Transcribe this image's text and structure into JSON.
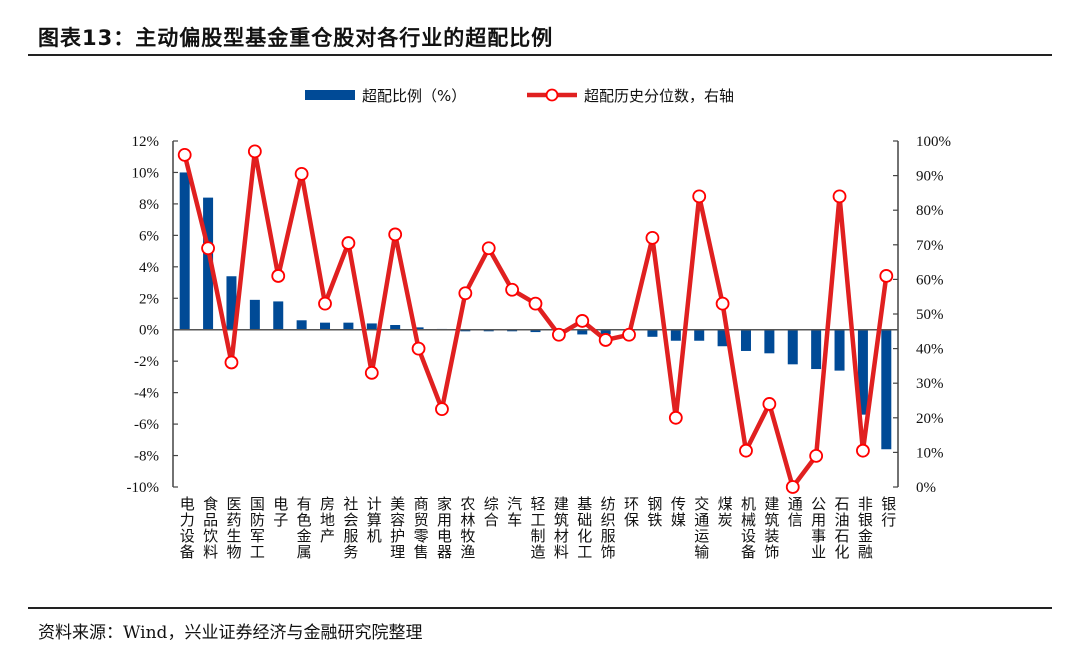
{
  "title": "图表13：主动偏股型基金重仓股对各行业的超配比例",
  "source": "资料来源：Wind，兴业证券经济与金融研究院整理",
  "chart_data": {
    "type": "bar+line",
    "categories": [
      "电力设备",
      "食品饮料",
      "医药生物",
      "国防军工",
      "电子",
      "有色金属",
      "房地产",
      "社会服务",
      "计算机",
      "美容护理",
      "商贸零售",
      "家用电器",
      "农林牧渔",
      "综合",
      "汽车",
      "轻工制造",
      "建筑材料",
      "基础化工",
      "纺织服饰",
      "环保",
      "钢铁",
      "传媒",
      "交通运输",
      "煤炭",
      "机械设备",
      "建筑装饰",
      "通信",
      "公用事业",
      "石油石化",
      "非银金融",
      "银行"
    ],
    "series": [
      {
        "name": "超配比例（%）",
        "type": "bar",
        "axis": "left",
        "color": "#004a96",
        "values": [
          10.0,
          8.4,
          3.4,
          1.9,
          1.8,
          0.6,
          0.45,
          0.45,
          0.4,
          0.3,
          0.15,
          0.05,
          -0.1,
          -0.1,
          -0.1,
          -0.15,
          -0.05,
          -0.3,
          -0.3,
          -0.1,
          -0.45,
          -0.7,
          -0.7,
          -1.05,
          -1.35,
          -1.5,
          -2.2,
          -2.5,
          -2.6,
          -5.4,
          -7.6
        ]
      },
      {
        "name": "超配历史分位数，右轴",
        "type": "line",
        "axis": "right",
        "color": "#e02020",
        "values": [
          96,
          69,
          36,
          97,
          61,
          90.5,
          53,
          70.5,
          33,
          73,
          40,
          22.5,
          56,
          69,
          57,
          53,
          44,
          48,
          42.5,
          44,
          72,
          20,
          84,
          53,
          10.5,
          24,
          0,
          9,
          84,
          10.5,
          61
        ]
      }
    ],
    "left_axis": {
      "ylim": [
        -10,
        12
      ],
      "ticks": [
        "12%",
        "10%",
        "8%",
        "6%",
        "4%",
        "2%",
        "0%",
        "-2%",
        "-4%",
        "-6%",
        "-8%",
        "-10%"
      ]
    },
    "right_axis": {
      "ylim": [
        0,
        100
      ],
      "ticks": [
        "100%",
        "90%",
        "80%",
        "70%",
        "60%",
        "50%",
        "40%",
        "30%",
        "20%",
        "10%",
        "0%"
      ]
    },
    "legend_position": "top",
    "grid": false
  }
}
